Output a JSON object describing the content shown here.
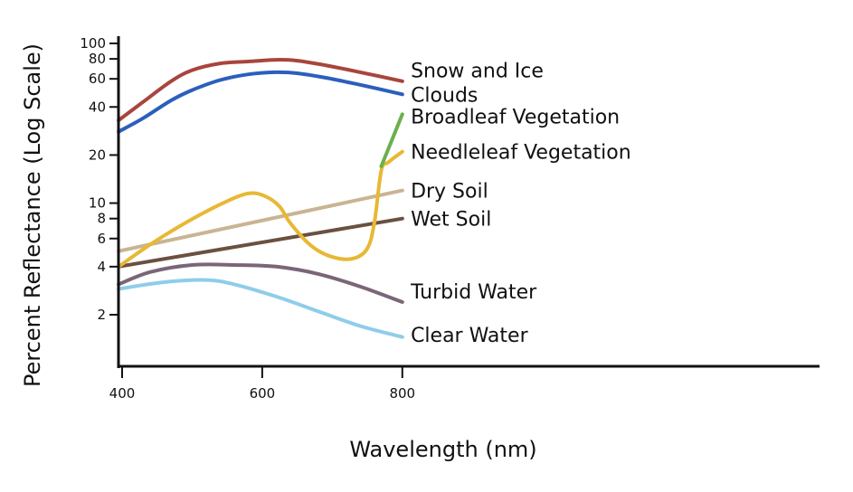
{
  "chart_data": {
    "type": "line",
    "title": "",
    "xlabel": "Wavelength (nm)",
    "ylabel": "Percent Reflectance (Log Scale)",
    "xlim": [
      395,
      1000
    ],
    "ylim": [
      1.3,
      110
    ],
    "yscale": "log",
    "grid": false,
    "legend": "inline labels at right end of each line",
    "x_ticks": [
      400,
      600,
      800
    ],
    "y_ticks": [
      2,
      4,
      6,
      8,
      10,
      20,
      40,
      60,
      80,
      100
    ],
    "series": [
      {
        "name": "Snow and Ice",
        "color": "#a8453d",
        "label_pos": [
          812,
          68
        ],
        "x": [
          395,
          430,
          470,
          500,
          540,
          580,
          620,
          650,
          690,
          740,
          800
        ],
        "y": [
          33,
          43,
          58,
          68,
          75,
          77,
          79,
          78,
          73,
          66,
          58
        ]
      },
      {
        "name": "Clouds",
        "color": "#2b5fbd",
        "label_pos": [
          812,
          48
        ],
        "x": [
          395,
          430,
          470,
          500,
          540,
          580,
          620,
          650,
          690,
          740,
          800
        ],
        "y": [
          28,
          34,
          44,
          51,
          59,
          64,
          66,
          65,
          61,
          55,
          48
        ]
      },
      {
        "name": "Broadleaf Vegetation",
        "color": "#6bb04c",
        "label_pos": [
          812,
          35
        ],
        "x": [
          770,
          790,
          800
        ],
        "y": [
          17,
          28,
          36
        ]
      },
      {
        "name": "Needleleaf Vegetation",
        "color": "#e8b835",
        "label_pos": [
          812,
          21
        ],
        "x": [
          395,
          440,
          490,
          540,
          580,
          605,
          625,
          640,
          670,
          700,
          730,
          750,
          760,
          770,
          780,
          800
        ],
        "y": [
          4,
          5.5,
          7.5,
          9.8,
          11.5,
          11,
          9.5,
          7.5,
          5.4,
          4.6,
          4.5,
          5.2,
          7.5,
          16,
          18,
          21
        ]
      },
      {
        "name": "Dry Soil",
        "color": "#c9b493",
        "label_pos": [
          812,
          12
        ],
        "x": [
          395,
          800
        ],
        "y": [
          5,
          12
        ]
      },
      {
        "name": "Wet Soil",
        "color": "#6b5040",
        "label_pos": [
          812,
          8
        ],
        "x": [
          395,
          800
        ],
        "y": [
          4,
          8
        ]
      },
      {
        "name": "Turbid Water",
        "color": "#7a6678",
        "label_pos": [
          812,
          2.8
        ],
        "x": [
          395,
          440,
          500,
          560,
          620,
          680,
          740,
          800
        ],
        "y": [
          3.1,
          3.7,
          4.1,
          4.1,
          4.0,
          3.6,
          3.0,
          2.4
        ]
      },
      {
        "name": "Clear Water",
        "color": "#8ecdea",
        "label_pos": [
          812,
          1.5
        ],
        "x": [
          395,
          460,
          520,
          560,
          620,
          680,
          740,
          800
        ],
        "y": [
          2.9,
          3.2,
          3.3,
          3.1,
          2.6,
          2.1,
          1.7,
          1.45
        ]
      }
    ]
  }
}
